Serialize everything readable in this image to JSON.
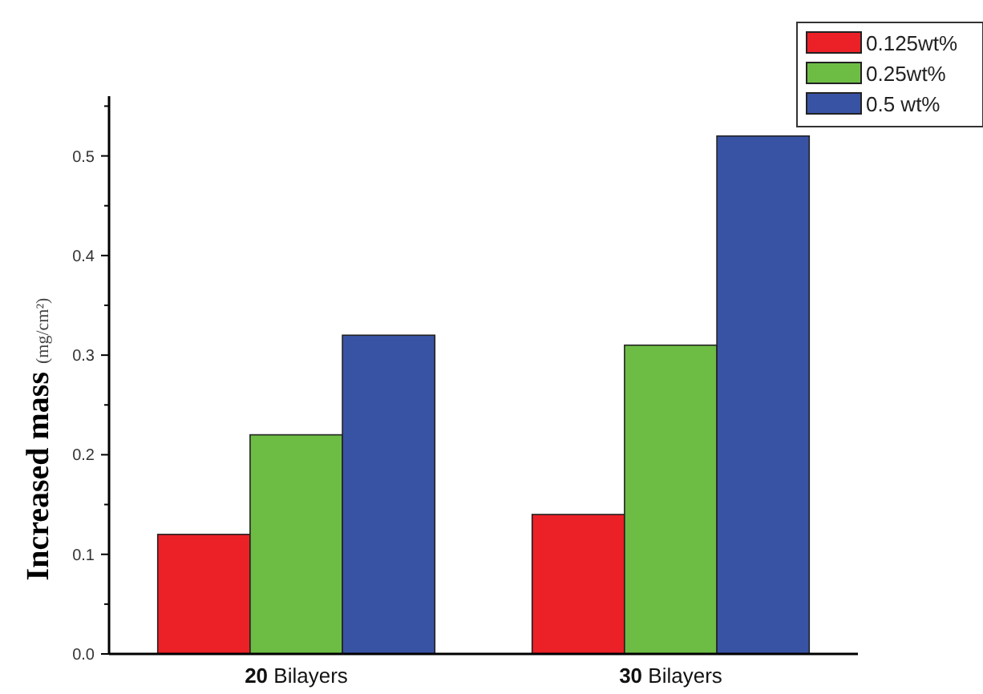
{
  "chart_data": {
    "type": "bar",
    "ylabel": "Increased mass (mg/cm²)",
    "categories": [
      "20 Bilayers",
      "30 Bilayers"
    ],
    "series": [
      {
        "name": "0.125wt%",
        "color": "#ec2027",
        "values": [
          0.12,
          0.14
        ]
      },
      {
        "name": "0.25wt%",
        "color": "#6dbd45",
        "values": [
          0.22,
          0.31
        ]
      },
      {
        "name": "0.5 wt%",
        "color": "#3953a4",
        "values": [
          0.32,
          0.52
        ]
      }
    ],
    "ylim": [
      0,
      0.56
    ],
    "yticks": [
      {
        "value": 0,
        "label": "0.0"
      },
      {
        "value": 0.05,
        "label": null
      },
      {
        "value": 0.1,
        "label": "0.1"
      },
      {
        "value": 0.15,
        "label": null
      },
      {
        "value": 0.2,
        "label": "0.2"
      },
      {
        "value": 0.25,
        "label": null
      },
      {
        "value": 0.3,
        "label": "0.3"
      },
      {
        "value": 0.35,
        "label": null
      },
      {
        "value": 0.4,
        "label": "0.4"
      },
      {
        "value": 0.45,
        "label": null
      },
      {
        "value": 0.5,
        "label": "0.5"
      },
      {
        "value": 0.55,
        "label": null
      }
    ],
    "legend": "top right",
    "grid": false
  }
}
